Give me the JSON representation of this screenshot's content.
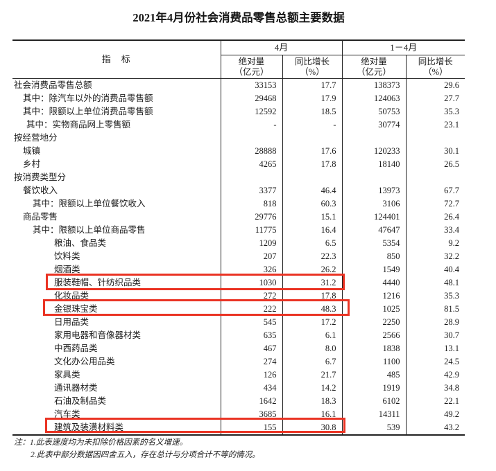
{
  "title": "2021年4月份社会消费品零售总额主要数据",
  "colors": {
    "highlight_red": "#ea3323",
    "text": "#1c1c1c",
    "line": "#222222"
  },
  "table": {
    "header": {
      "indicator": "指　标",
      "group_april": "4月",
      "group_cum": "1－4月",
      "abs_line1": "绝对量",
      "abs_line2": "（亿元）",
      "yoy_line1": "同比增长",
      "yoy_line2": "（%）"
    },
    "rows": [
      {
        "label": "社会消费品零售总额",
        "indent": "0",
        "a1": "33153",
        "a2": "17.7",
        "a3": "138373",
        "a4": "29.6"
      },
      {
        "label": "其中：除汽车以外的消费品零售额",
        "indent": "1",
        "a1": "29468",
        "a2": "17.9",
        "a3": "124063",
        "a4": "27.7"
      },
      {
        "label": "其中：限额以上单位消费品零售额",
        "indent": "1",
        "a1": "12592",
        "a2": "18.5",
        "a3": "50753",
        "a4": "35.3"
      },
      {
        "label": "其中：实物商品网上零售额",
        "indent": "1b",
        "a1": "-",
        "a2": "-",
        "a3": "30774",
        "a4": "23.1"
      },
      {
        "label": "按经营地分",
        "indent": "0",
        "a1": "",
        "a2": "",
        "a3": "",
        "a4": ""
      },
      {
        "label": "城镇",
        "indent": "1",
        "a1": "28888",
        "a2": "17.6",
        "a3": "120233",
        "a4": "30.1"
      },
      {
        "label": "乡村",
        "indent": "1",
        "a1": "4265",
        "a2": "17.8",
        "a3": "18140",
        "a4": "26.5"
      },
      {
        "label": "按消费类型分",
        "indent": "0",
        "a1": "",
        "a2": "",
        "a3": "",
        "a4": ""
      },
      {
        "label": "餐饮收入",
        "indent": "1",
        "a1": "3377",
        "a2": "46.4",
        "a3": "13973",
        "a4": "67.7"
      },
      {
        "label": "其中：限额以上单位餐饮收入",
        "indent": "2",
        "a1": "818",
        "a2": "60.3",
        "a3": "3106",
        "a4": "72.7"
      },
      {
        "label": "商品零售",
        "indent": "1",
        "a1": "29776",
        "a2": "15.1",
        "a3": "124401",
        "a4": "26.4"
      },
      {
        "label": "其中：限额以上单位商品零售",
        "indent": "2",
        "a1": "11775",
        "a2": "16.4",
        "a3": "47647",
        "a4": "33.4"
      },
      {
        "label": "粮油、食品类",
        "indent": "3",
        "a1": "1209",
        "a2": "6.5",
        "a3": "5354",
        "a4": "9.2"
      },
      {
        "label": "饮料类",
        "indent": "3",
        "a1": "207",
        "a2": "22.3",
        "a3": "850",
        "a4": "32.2"
      },
      {
        "label": "烟酒类",
        "indent": "3",
        "a1": "326",
        "a2": "26.2",
        "a3": "1549",
        "a4": "40.4"
      },
      {
        "label": "服装鞋帽、针纺织品类",
        "indent": "3",
        "a1": "1030",
        "a2": "31.2",
        "a3": "4440",
        "a4": "48.1",
        "hl": true
      },
      {
        "label": "化妆品类",
        "indent": "3",
        "a1": "272",
        "a2": "17.8",
        "a3": "1216",
        "a4": "35.3"
      },
      {
        "label": "金银珠宝类",
        "indent": "3",
        "a1": "222",
        "a2": "48.3",
        "a3": "1025",
        "a4": "81.5",
        "hl": true
      },
      {
        "label": "日用品类",
        "indent": "3",
        "a1": "545",
        "a2": "17.2",
        "a3": "2250",
        "a4": "28.9"
      },
      {
        "label": "家用电器和音像器材类",
        "indent": "3",
        "a1": "635",
        "a2": "6.1",
        "a3": "2566",
        "a4": "30.7"
      },
      {
        "label": "中西药品类",
        "indent": "3",
        "a1": "467",
        "a2": "8.0",
        "a3": "1838",
        "a4": "13.1"
      },
      {
        "label": "文化办公用品类",
        "indent": "3",
        "a1": "274",
        "a2": "6.7",
        "a3": "1100",
        "a4": "24.5"
      },
      {
        "label": "家具类",
        "indent": "3",
        "a1": "126",
        "a2": "21.7",
        "a3": "485",
        "a4": "42.9"
      },
      {
        "label": "通讯器材类",
        "indent": "3",
        "a1": "434",
        "a2": "14.2",
        "a3": "1919",
        "a4": "34.8"
      },
      {
        "label": "石油及制品类",
        "indent": "3",
        "a1": "1642",
        "a2": "18.3",
        "a3": "6102",
        "a4": "22.1"
      },
      {
        "label": "汽车类",
        "indent": "3",
        "a1": "3685",
        "a2": "16.1",
        "a3": "14311",
        "a4": "49.2"
      },
      {
        "label": "建筑及装潢材料类",
        "indent": "3",
        "a1": "155",
        "a2": "30.8",
        "a3": "539",
        "a4": "43.2",
        "hl": true
      }
    ]
  },
  "notes": {
    "line1": "注：1.此表速度均为未扣除价格因素的名义增速。",
    "line2": "2.此表中部分数据因四舍五入，存在总计与分项合计不等的情况。"
  },
  "chart_data": {
    "type": "table",
    "title": "2021年4月份社会消费品零售总额主要数据",
    "columns": [
      "指标",
      "4月 绝对量（亿元）",
      "4月 同比增长（%）",
      "1－4月 绝对量（亿元）",
      "1－4月 同比增长（%）"
    ],
    "highlighted_rows": [
      "服装鞋帽、针纺织品类",
      "金银珠宝类",
      "建筑及装潢材料类"
    ],
    "rows": [
      [
        "社会消费品零售总额",
        33153,
        17.7,
        138373,
        29.6
      ],
      [
        "其中：除汽车以外的消费品零售额",
        29468,
        17.9,
        124063,
        27.7
      ],
      [
        "其中：限额以上单位消费品零售额",
        12592,
        18.5,
        50753,
        35.3
      ],
      [
        "其中：实物商品网上零售额",
        null,
        null,
        30774,
        23.1
      ],
      [
        "按经营地分",
        null,
        null,
        null,
        null
      ],
      [
        "城镇",
        28888,
        17.6,
        120233,
        30.1
      ],
      [
        "乡村",
        4265,
        17.8,
        18140,
        26.5
      ],
      [
        "按消费类型分",
        null,
        null,
        null,
        null
      ],
      [
        "餐饮收入",
        3377,
        46.4,
        13973,
        67.7
      ],
      [
        "其中：限额以上单位餐饮收入",
        818,
        60.3,
        3106,
        72.7
      ],
      [
        "商品零售",
        29776,
        15.1,
        124401,
        26.4
      ],
      [
        "其中：限额以上单位商品零售",
        11775,
        16.4,
        47647,
        33.4
      ],
      [
        "粮油、食品类",
        1209,
        6.5,
        5354,
        9.2
      ],
      [
        "饮料类",
        207,
        22.3,
        850,
        32.2
      ],
      [
        "烟酒类",
        326,
        26.2,
        1549,
        40.4
      ],
      [
        "服装鞋帽、针纺织品类",
        1030,
        31.2,
        4440,
        48.1
      ],
      [
        "化妆品类",
        272,
        17.8,
        1216,
        35.3
      ],
      [
        "金银珠宝类",
        222,
        48.3,
        1025,
        81.5
      ],
      [
        "日用品类",
        545,
        17.2,
        2250,
        28.9
      ],
      [
        "家用电器和音像器材类",
        635,
        6.1,
        2566,
        30.7
      ],
      [
        "中西药品类",
        467,
        8.0,
        1838,
        13.1
      ],
      [
        "文化办公用品类",
        274,
        6.7,
        1100,
        24.5
      ],
      [
        "家具类",
        126,
        21.7,
        485,
        42.9
      ],
      [
        "通讯器材类",
        434,
        14.2,
        1919,
        34.8
      ],
      [
        "石油及制品类",
        1642,
        18.3,
        6102,
        22.1
      ],
      [
        "汽车类",
        3685,
        16.1,
        14311,
        49.2
      ],
      [
        "建筑及装潢材料类",
        155,
        30.8,
        539,
        43.2
      ]
    ]
  }
}
